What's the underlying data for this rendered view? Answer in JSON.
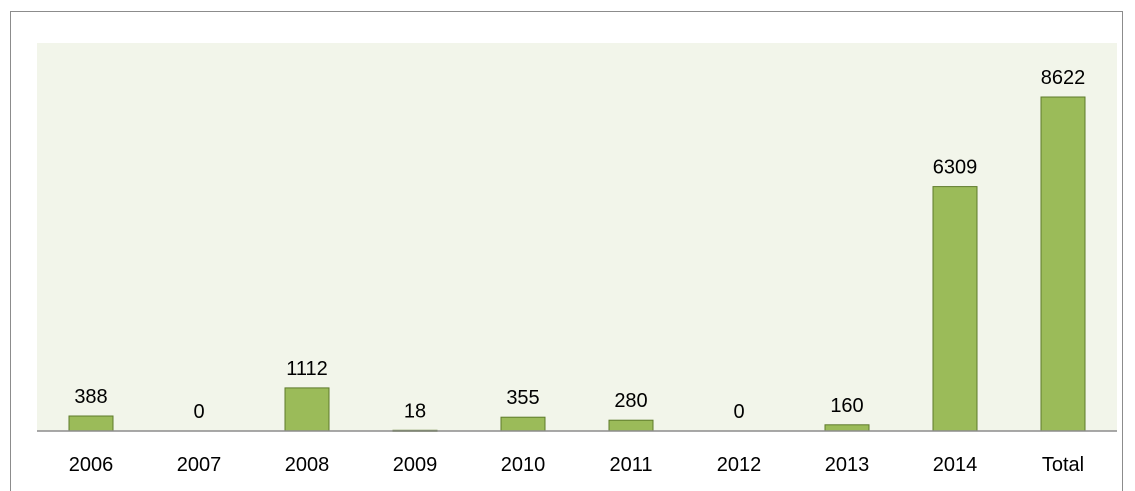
{
  "chart_data": {
    "type": "bar",
    "categories": [
      "2006",
      "2007",
      "2008",
      "2009",
      "2010",
      "2011",
      "2012",
      "2013",
      "2014",
      "Total"
    ],
    "values": [
      388,
      0,
      1112,
      18,
      355,
      280,
      0,
      160,
      6309,
      8622
    ],
    "data_labels": [
      "388",
      "0",
      "1112",
      "18",
      "355",
      "280",
      "0",
      "160",
      "6309",
      "8622"
    ],
    "title": "",
    "xlabel": "",
    "ylabel": "",
    "ylim": [
      0,
      9000
    ],
    "grid": false,
    "legend": "none",
    "colors": {
      "plot_background": "#f2f5ea",
      "bar_fill": "#9bbb59",
      "bar_border": "#5e7a2a",
      "axis_line": "#8c8c8c",
      "frame_border": "#8c8c8c"
    }
  }
}
